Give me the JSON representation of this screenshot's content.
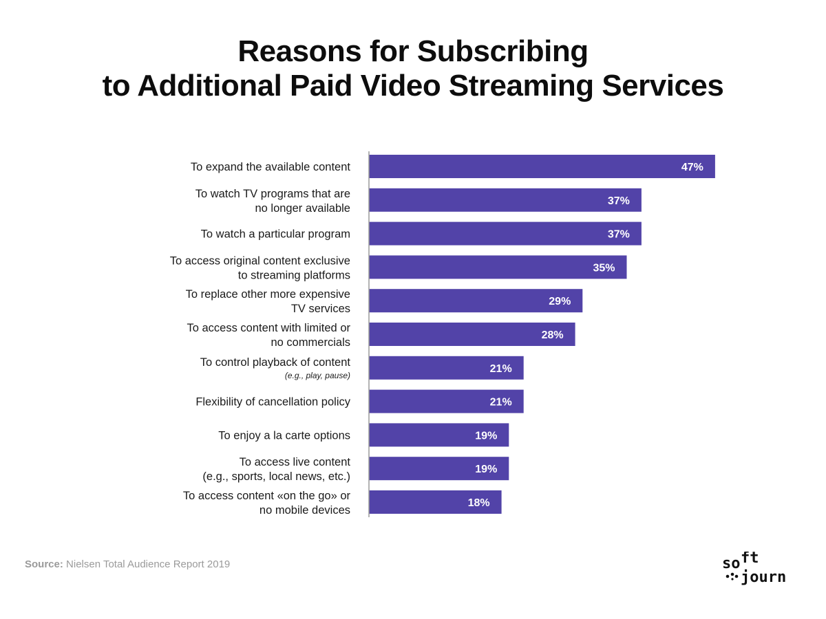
{
  "title": {
    "line1": "Reasons for Subscribing",
    "line2": "to Additional Paid Video Streaming Services"
  },
  "source": {
    "label": "Source:",
    "text": " Nielsen Total Audience Report 2019"
  },
  "logo": {
    "line1a": "so",
    "line1b": "ft",
    "line2": "journ"
  },
  "colors": {
    "bar": "#5243a8",
    "axis": "#9a9a9a",
    "bar_label": "#ffffff",
    "category_label": "#1a1a1a"
  },
  "chart_data": {
    "type": "bar",
    "orientation": "horizontal",
    "title": "Reasons for Subscribing to Additional Paid Video Streaming Services",
    "xlim": [
      0,
      50
    ],
    "grid": false,
    "value_suffix": "%",
    "categories": [
      {
        "lines": [
          "To expand the available content"
        ]
      },
      {
        "lines": [
          "To watch TV programs that are",
          "no longer available"
        ]
      },
      {
        "lines": [
          "To watch a particular program"
        ]
      },
      {
        "lines": [
          "To access original content exclusive",
          "to streaming platforms"
        ]
      },
      {
        "lines": [
          "To replace other more expensive",
          "TV services"
        ]
      },
      {
        "lines": [
          "To access content with limited or",
          "no commercials"
        ]
      },
      {
        "lines": [
          "To control playback of content"
        ],
        "note": "(e.g., play, pause)"
      },
      {
        "lines": [
          "Flexibility of cancellation policy"
        ]
      },
      {
        "lines": [
          "To enjoy a la carte options"
        ]
      },
      {
        "lines": [
          "To access live content",
          "(e.g., sports, local news, etc.)"
        ]
      },
      {
        "lines": [
          "To access content «on the go» or",
          "no mobile devices"
        ]
      }
    ],
    "values": [
      47,
      37,
      37,
      35,
      29,
      28,
      21,
      21,
      19,
      19,
      18
    ],
    "data_labels": [
      "47%",
      "37%",
      "37%",
      "35%",
      "29%",
      "28%",
      "21%",
      "21%",
      "19%",
      "19%",
      "18%"
    ]
  }
}
